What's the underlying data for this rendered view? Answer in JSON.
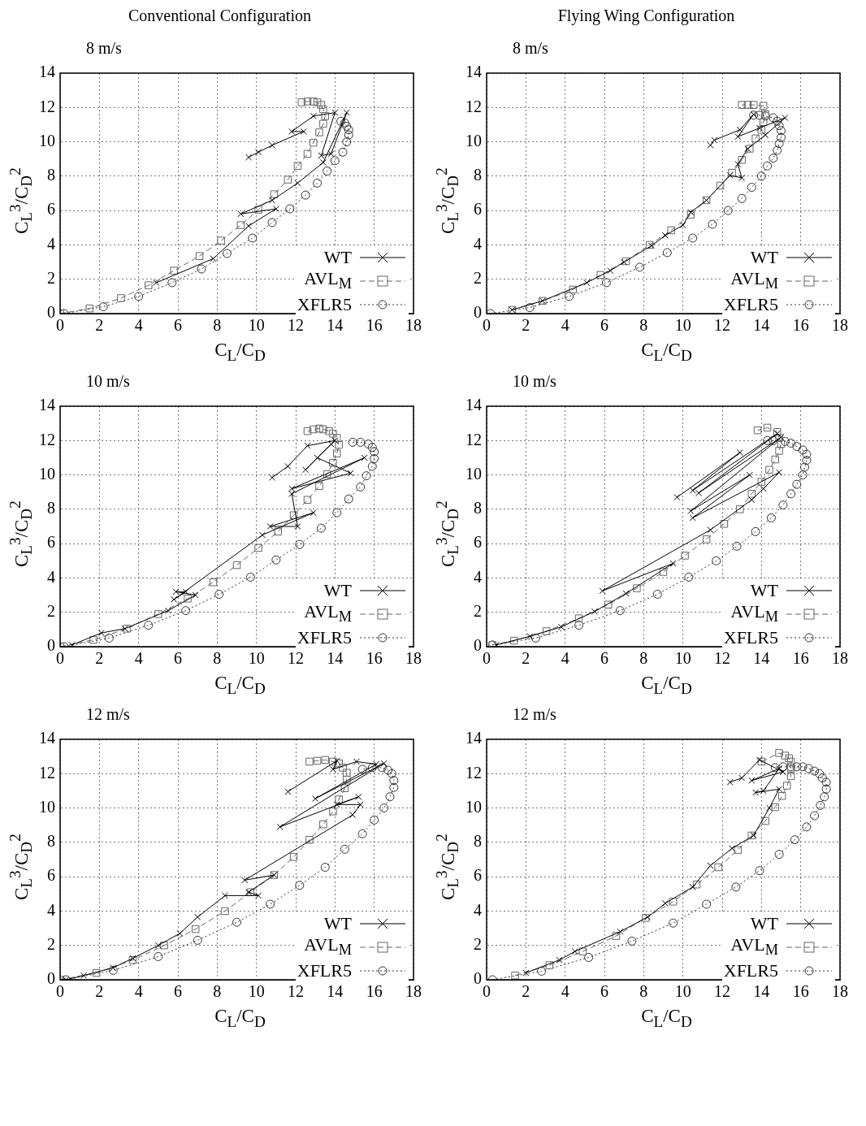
{
  "chart_data": [
    {
      "type": "line",
      "title": "Conventional Configuration",
      "subtitle": "8 m/s",
      "xlabel": "C$_{L}$/C$_{D}$",
      "ylabel": "C$_{L}$$^{3}$/C$_{D}$$^{2}$",
      "xlim": [
        0,
        18
      ],
      "ylim": [
        0,
        14
      ],
      "xticks": [
        0,
        2,
        4,
        6,
        8,
        10,
        12,
        14,
        16,
        18
      ],
      "yticks": [
        0,
        2,
        4,
        6,
        8,
        10,
        12,
        14
      ],
      "grid": true,
      "legend": "bottom right",
      "series": [
        {
          "name": "WT",
          "color": "#000000",
          "marker": "cross",
          "line_style": "solid",
          "x": [
            4.9,
            7.8,
            9.6,
            11.0,
            9.2,
            10.8,
            12.1,
            13.4,
            14.6,
            13.8,
            13.3,
            14.0,
            12.9,
            11.8,
            12.4,
            10.8,
            10.1,
            9.6
          ],
          "values": [
            1.8,
            3.2,
            5.1,
            6.1,
            5.8,
            6.6,
            7.6,
            8.8,
            11.7,
            9.3,
            9.2,
            11.7,
            11.5,
            10.6,
            10.6,
            9.8,
            9.4,
            9.1
          ]
        },
        {
          "name": "AVL$_{M}$",
          "color": "#666666",
          "marker": "square",
          "line_style": "dashed",
          "x": [
            0,
            1.5,
            3.1,
            4.5,
            5.8,
            7.1,
            8.2,
            9.2,
            10.1,
            10.9,
            11.6,
            12.1,
            12.6,
            12.9,
            13.2,
            13.4,
            13.5,
            13.4,
            13.3,
            13.1,
            12.9,
            12.6,
            12.3
          ],
          "values": [
            0,
            0.3,
            0.9,
            1.65,
            2.5,
            3.35,
            4.25,
            5.15,
            6.05,
            6.95,
            7.8,
            8.6,
            9.3,
            9.95,
            10.55,
            11.05,
            11.5,
            11.9,
            12.15,
            12.3,
            12.35,
            12.35,
            12.3
          ]
        },
        {
          "name": "XFLR5",
          "color": "#333333",
          "marker": "circle",
          "line_style": "dotted",
          "x": [
            0.2,
            2.2,
            4.0,
            5.7,
            7.2,
            8.5,
            9.8,
            10.8,
            11.7,
            12.5,
            13.1,
            13.6,
            14.0,
            14.4,
            14.6,
            14.7,
            14.7,
            14.6,
            14.5,
            14.3
          ],
          "values": [
            0,
            0.4,
            1.0,
            1.8,
            2.6,
            3.5,
            4.4,
            5.3,
            6.1,
            6.9,
            7.6,
            8.3,
            8.9,
            9.4,
            10.0,
            10.4,
            10.7,
            10.9,
            11.1,
            11.2
          ]
        }
      ]
    },
    {
      "type": "line",
      "title": "Flying Wing Configuration",
      "subtitle": "8 m/s",
      "xlabel": "C$_{L}$/C$_{D}$",
      "ylabel": "C$_{L}$$^{3}$/C$_{D}$$^{2}$",
      "xlim": [
        0,
        18
      ],
      "ylim": [
        0,
        14
      ],
      "xticks": [
        0,
        2,
        4,
        6,
        8,
        10,
        12,
        14,
        16,
        18
      ],
      "yticks": [
        0,
        2,
        4,
        6,
        8,
        10,
        12,
        14
      ],
      "grid": true,
      "legend": "bottom right",
      "series": [
        {
          "name": "WT",
          "color": "#000000",
          "marker": "cross",
          "line_style": "solid",
          "x": [
            1.3,
            2.85,
            5.1,
            6.3,
            7.0,
            8.4,
            9.1,
            10.0,
            10.4,
            11.2,
            12.4,
            13.0,
            12.8,
            13.3,
            14.2,
            15.2,
            13.9,
            12.8,
            13.6,
            12.9,
            11.6,
            11.4
          ],
          "values": [
            0.22,
            0.74,
            1.8,
            2.5,
            3.0,
            3.95,
            4.55,
            5.15,
            5.9,
            6.6,
            8.05,
            7.9,
            8.7,
            9.6,
            10.4,
            11.4,
            10.8,
            10.3,
            11.6,
            10.7,
            10.1,
            9.8
          ]
        },
        {
          "name": "AVL$_{M}$",
          "color": "#666666",
          "marker": "square",
          "line_style": "dashed",
          "x": [
            1.3,
            2.85,
            4.4,
            5.8,
            7.1,
            8.3,
            9.4,
            10.4,
            11.2,
            11.9,
            12.5,
            13.0,
            13.4,
            13.7,
            14.0,
            14.1,
            14.2,
            14.1,
            13.6,
            13.3,
            13.0
          ],
          "values": [
            0.22,
            0.74,
            1.4,
            2.25,
            3.05,
            4.0,
            4.85,
            5.75,
            6.6,
            7.45,
            8.2,
            8.95,
            9.6,
            10.2,
            10.7,
            11.15,
            11.6,
            12.1,
            12.15,
            12.15,
            12.15
          ]
        },
        {
          "name": "XFLR5",
          "color": "#333333",
          "marker": "circle",
          "line_style": "dotted",
          "x": [
            0.2,
            2.2,
            4.2,
            6.1,
            7.8,
            9.2,
            10.5,
            11.5,
            12.3,
            13.0,
            13.5,
            14.0,
            14.3,
            14.6,
            14.8,
            14.9,
            15.0,
            15.0,
            14.9,
            14.8,
            14.6,
            14.2,
            13.9,
            13.6
          ],
          "values": [
            0,
            0.35,
            1.0,
            1.8,
            2.7,
            3.55,
            4.4,
            5.2,
            6.0,
            6.7,
            7.35,
            8.0,
            8.6,
            9.05,
            9.5,
            9.9,
            10.25,
            10.65,
            10.95,
            11.2,
            11.4,
            11.5,
            11.55,
            11.55
          ]
        }
      ]
    },
    {
      "type": "line",
      "title": "10 m/s",
      "xlabel": "C$_{L}$/C$_{D}$",
      "ylabel": "C$_{L}$$^{3}$/C$_{D}$$^{2}$",
      "xlim": [
        0,
        18
      ],
      "ylim": [
        0,
        14
      ],
      "xticks": [
        0,
        2,
        4,
        6,
        8,
        10,
        12,
        14,
        16,
        18
      ],
      "yticks": [
        0,
        2,
        4,
        6,
        8,
        10,
        12,
        14
      ],
      "grid": true,
      "legend": "bottom right",
      "series": [
        {
          "name": "WT",
          "color": "#000000",
          "marker": "cross",
          "line_style": "solid",
          "x": [
            0.6,
            2.1,
            3.3,
            5.5,
            6.9,
            5.9,
            6.4,
            5.8,
            10.3,
            12.9,
            10.7,
            12.1,
            11.8,
            15.5,
            11.8,
            14.8,
            13.1,
            13.8,
            12.5,
            14.0,
            12.6,
            11.6,
            10.8
          ],
          "values": [
            0.1,
            0.8,
            1.05,
            2.1,
            3.0,
            3.2,
            3.2,
            2.75,
            6.5,
            7.8,
            7.0,
            7.0,
            8.9,
            11.0,
            9.2,
            10.1,
            11.0,
            11.8,
            10.3,
            12.0,
            11.7,
            10.5,
            9.85
          ]
        },
        {
          "name": "AVL$_{M}$",
          "color": "#666666",
          "marker": "square",
          "line_style": "dashed",
          "x": [
            0,
            1.7,
            3.4,
            5.0,
            6.5,
            7.8,
            9.0,
            10.1,
            11.1,
            11.9,
            12.6,
            13.2,
            13.6,
            13.9,
            14.1,
            14.2,
            14.1,
            13.9,
            13.7,
            13.4,
            13.2,
            12.9,
            12.6
          ],
          "values": [
            0,
            0.4,
            1.05,
            1.9,
            2.8,
            3.75,
            4.75,
            5.75,
            6.7,
            7.65,
            8.55,
            9.35,
            10.05,
            10.7,
            11.25,
            11.75,
            12.15,
            12.4,
            12.55,
            12.65,
            12.7,
            12.65,
            12.55
          ]
        },
        {
          "name": "XFLR5",
          "color": "#333333",
          "marker": "circle",
          "line_style": "dotted",
          "x": [
            0.2,
            2.5,
            4.5,
            6.4,
            8.1,
            9.7,
            11.0,
            12.2,
            13.3,
            14.1,
            14.7,
            15.3,
            15.6,
            15.9,
            16.0,
            16.0,
            15.9,
            15.7,
            15.3,
            14.9
          ],
          "values": [
            0,
            0.5,
            1.25,
            2.1,
            3.05,
            4.05,
            5.05,
            5.95,
            6.9,
            7.8,
            8.6,
            9.3,
            9.95,
            10.5,
            10.95,
            11.35,
            11.6,
            11.8,
            11.9,
            11.9
          ]
        }
      ]
    },
    {
      "type": "line",
      "title": "10 m/s",
      "xlabel": "C$_{L}$/C$_{D}$",
      "ylabel": "C$_{L}$$^{3}$/C$_{D}$$^{2}$",
      "xlim": [
        0,
        18
      ],
      "ylim": [
        0,
        14
      ],
      "xticks": [
        0,
        2,
        4,
        6,
        8,
        10,
        12,
        14,
        16,
        18
      ],
      "yticks": [
        0,
        2,
        4,
        6,
        8,
        10,
        12,
        14
      ],
      "grid": true,
      "legend": "bottom right",
      "series": [
        {
          "name": "WT",
          "color": "#000000",
          "marker": "cross",
          "line_style": "solid",
          "x": [
            0.5,
            2.2,
            3.8,
            5.5,
            7.1,
            9.5,
            5.9,
            11.4,
            13.5,
            14.1,
            14.9,
            10.5,
            13.4,
            10.4,
            15.0,
            10.8,
            14.8,
            10.5,
            12.9,
            9.7
          ],
          "values": [
            0.1,
            0.6,
            1.15,
            2.05,
            3.1,
            4.85,
            3.25,
            6.8,
            8.55,
            9.2,
            10.15,
            7.5,
            10.0,
            7.9,
            12.2,
            8.95,
            12.4,
            9.1,
            11.3,
            8.7
          ]
        },
        {
          "name": "AVL$_{M}$",
          "color": "#666666",
          "marker": "square",
          "line_style": "dashed",
          "x": [
            0.3,
            1.4,
            3.05,
            4.7,
            6.2,
            7.65,
            9.0,
            10.1,
            11.2,
            12.1,
            12.9,
            13.5,
            14.0,
            14.4,
            14.7,
            14.9,
            15.0,
            14.9,
            14.8,
            14.3,
            13.8
          ],
          "values": [
            0.1,
            0.35,
            0.9,
            1.65,
            2.45,
            3.4,
            4.35,
            5.3,
            6.25,
            7.15,
            8.0,
            8.9,
            9.6,
            10.3,
            10.9,
            11.4,
            11.8,
            12.15,
            12.5,
            12.75,
            12.6
          ]
        },
        {
          "name": "XFLR5",
          "color": "#333333",
          "marker": "circle",
          "line_style": "dotted",
          "x": [
            0.3,
            2.5,
            4.7,
            6.8,
            8.7,
            10.3,
            11.7,
            12.75,
            13.7,
            14.5,
            15.1,
            15.5,
            15.8,
            16.1,
            16.2,
            16.3,
            16.3,
            16.1,
            15.8,
            15.5,
            15.2,
            14.6,
            14.3
          ],
          "values": [
            0.1,
            0.5,
            1.25,
            2.1,
            3.05,
            4.05,
            5.0,
            5.85,
            6.7,
            7.5,
            8.25,
            8.9,
            9.45,
            10.0,
            10.45,
            10.85,
            11.2,
            11.45,
            11.65,
            11.85,
            11.95,
            12.0,
            12.0
          ]
        }
      ]
    },
    {
      "type": "line",
      "title": "12 m/s",
      "xlabel": "C$_{L}$/C$_{D}$",
      "ylabel": "C$_{L}$$^{3}$/C$_{D}$$^{2}$",
      "xlim": [
        0,
        18
      ],
      "ylim": [
        0,
        14
      ],
      "xticks": [
        0,
        2,
        4,
        6,
        8,
        10,
        12,
        14,
        16,
        18
      ],
      "yticks": [
        0,
        2,
        4,
        6,
        8,
        10,
        12,
        14
      ],
      "grid": true,
      "legend": "bottom right",
      "series": [
        {
          "name": "WT",
          "color": "#000000",
          "marker": "cross",
          "line_style": "solid",
          "x": [
            0.3,
            1.2,
            2.7,
            3.7,
            5.0,
            6.1,
            7.0,
            8.4,
            10.1,
            9.6,
            10.9,
            9.4,
            14.9,
            15.3,
            14.1,
            15.2,
            11.2,
            16.5,
            13.0,
            16.1,
            15.1,
            13.9,
            14.1,
            11.6
          ],
          "values": [
            0,
            0.25,
            0.7,
            1.25,
            2.0,
            2.7,
            3.65,
            4.9,
            4.9,
            5.1,
            6.1,
            5.8,
            9.6,
            10.2,
            10.2,
            10.65,
            8.9,
            12.6,
            10.55,
            12.55,
            12.7,
            12.25,
            12.75,
            10.95
          ]
        },
        {
          "name": "AVL$_{M}$",
          "color": "#666666",
          "marker": "square",
          "line_style": "dashed",
          "x": [
            0,
            1.85,
            3.7,
            5.3,
            6.9,
            8.4,
            9.7,
            10.9,
            11.9,
            12.7,
            13.4,
            13.9,
            14.2,
            14.5,
            14.6,
            14.6,
            14.4,
            14.2,
            13.9,
            13.5,
            13.1,
            12.7
          ],
          "values": [
            0,
            0.4,
            1.15,
            2.0,
            2.95,
            4.0,
            5.1,
            6.1,
            7.15,
            8.15,
            9.05,
            9.8,
            10.5,
            11.15,
            11.65,
            12.05,
            12.35,
            12.6,
            12.7,
            12.8,
            12.75,
            12.7
          ]
        },
        {
          "name": "XFLR5",
          "color": "#333333",
          "marker": "circle",
          "line_style": "dotted",
          "x": [
            0.3,
            2.7,
            5.0,
            7.0,
            9.0,
            10.7,
            12.2,
            13.5,
            14.5,
            15.4,
            16.0,
            16.5,
            16.8,
            17.0,
            17.0,
            16.9,
            16.7,
            16.4,
            15.9,
            15.4
          ],
          "values": [
            0,
            0.55,
            1.35,
            2.3,
            3.35,
            4.4,
            5.5,
            6.55,
            7.6,
            8.5,
            9.3,
            10.0,
            10.65,
            11.2,
            11.6,
            12.0,
            12.2,
            12.35,
            12.35,
            12.25
          ]
        }
      ]
    },
    {
      "type": "line",
      "title": "12 m/s",
      "xlabel": "C$_{L}$/C$_{D}$",
      "ylabel": "C$_{L}$$^{3}$/C$_{D}$$^{2}$",
      "xlim": [
        0,
        18
      ],
      "ylim": [
        0,
        14
      ],
      "xticks": [
        0,
        2,
        4,
        6,
        8,
        10,
        12,
        14,
        16,
        18
      ],
      "yticks": [
        0,
        2,
        4,
        6,
        8,
        10,
        12,
        14
      ],
      "grid": true,
      "legend": "bottom right",
      "series": [
        {
          "name": "WT",
          "color": "#000000",
          "marker": "cross",
          "line_style": "solid",
          "x": [
            2.0,
            3.7,
            4.5,
            6.8,
            8.2,
            9.1,
            10.5,
            11.4,
            12.5,
            13.6,
            14.4,
            14.9,
            13.7,
            14.1,
            14.9,
            13.5,
            15.1,
            13.9,
            13.0,
            12.4
          ],
          "values": [
            0.4,
            1.15,
            1.65,
            2.8,
            3.65,
            4.45,
            5.4,
            6.65,
            7.65,
            8.4,
            10.0,
            11.1,
            10.9,
            11.0,
            12.3,
            11.6,
            12.1,
            12.8,
            11.75,
            11.5
          ]
        },
        {
          "name": "AVL$_{M}$",
          "color": "#666666",
          "marker": "square",
          "line_style": "dashed",
          "x": [
            1.45,
            3.2,
            4.9,
            6.6,
            8.1,
            9.5,
            10.7,
            11.8,
            12.8,
            13.5,
            14.2,
            14.7,
            15.05,
            15.3,
            15.5,
            15.5,
            15.5,
            15.4,
            15.2,
            14.9,
            14.0
          ],
          "values": [
            0.25,
            0.85,
            1.65,
            2.55,
            3.6,
            4.55,
            5.55,
            6.55,
            7.55,
            8.4,
            9.25,
            10.05,
            10.7,
            11.3,
            11.85,
            12.3,
            12.7,
            12.9,
            13.05,
            13.2,
            12.7
          ]
        },
        {
          "name": "XFLR5",
          "color": "#333333",
          "marker": "circle",
          "line_style": "dotted",
          "x": [
            0.3,
            2.8,
            5.2,
            7.4,
            9.5,
            11.2,
            12.7,
            13.9,
            14.9,
            15.7,
            16.3,
            16.7,
            17.0,
            17.2,
            17.3,
            17.3,
            17.1,
            16.95,
            16.7,
            16.4,
            16.1,
            15.8,
            15.5,
            15.1,
            14.7
          ],
          "values": [
            0,
            0.5,
            1.3,
            2.25,
            3.3,
            4.4,
            5.4,
            6.35,
            7.3,
            8.15,
            8.9,
            9.55,
            10.15,
            10.65,
            11.1,
            11.5,
            11.75,
            12.0,
            12.15,
            12.3,
            12.4,
            12.4,
            12.4,
            12.4,
            12.35
          ]
        }
      ]
    }
  ]
}
